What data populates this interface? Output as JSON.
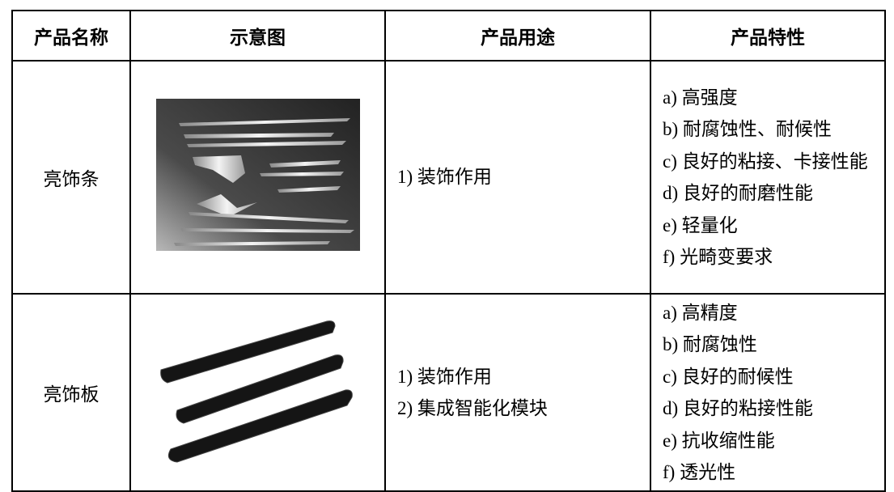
{
  "table": {
    "header": [
      "产品名称",
      "示意图",
      "产品用途",
      "产品特性"
    ],
    "rows": [
      {
        "name": "亮饰条",
        "uses": [
          "1) 装饰作用"
        ],
        "features": [
          "a) 高强度",
          "b) 耐腐蚀性、耐候性",
          "c) 良好的粘接、卡接性能",
          "d) 良好的耐磨性能",
          "e) 轻量化",
          "f) 光畸变要求"
        ]
      },
      {
        "name": "亮饰板",
        "uses": [
          "1) 装饰作用",
          "2) 集成智能化模块"
        ],
        "features": [
          "a) 高精度",
          "b) 耐腐蚀性",
          "c) 良好的耐候性",
          "d) 良好的粘接性能",
          "e) 抗收缩性能",
          "f) 透光性"
        ]
      }
    ]
  }
}
